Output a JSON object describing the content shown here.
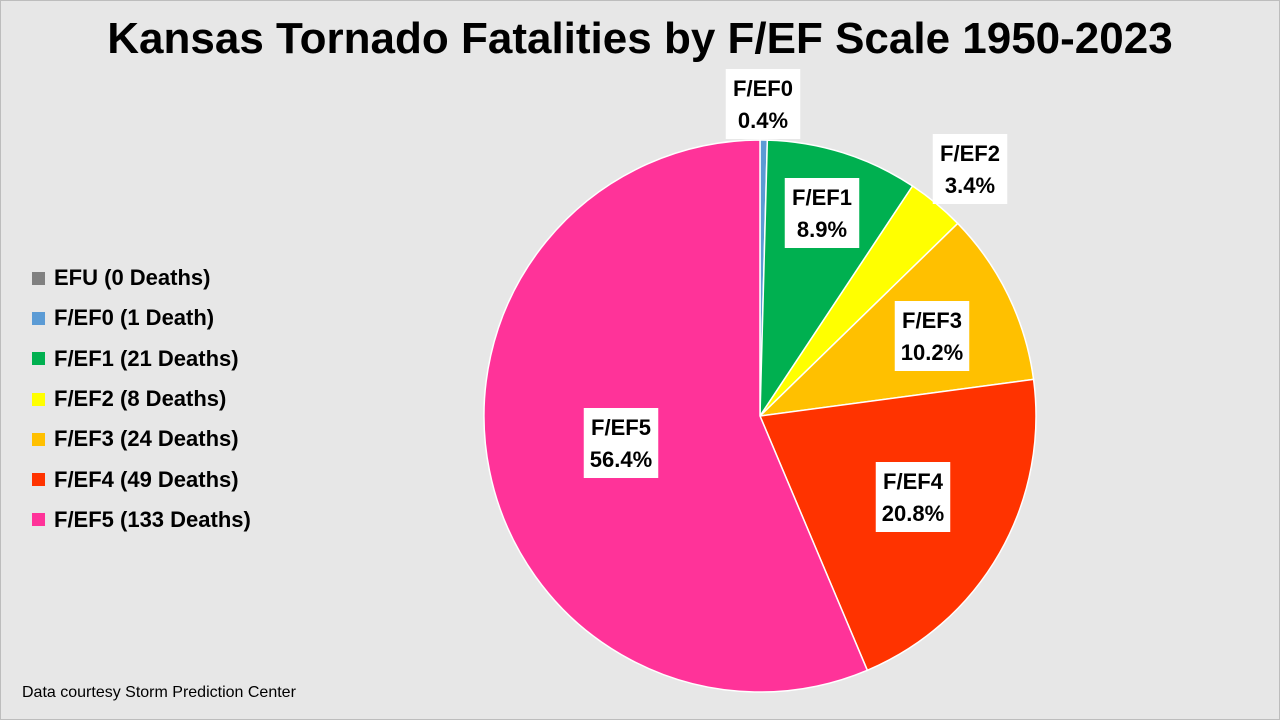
{
  "chart_data": {
    "type": "pie",
    "title": "Kansas Tornado Fatalities by F/EF Scale 1950-2023",
    "source_note": "Data courtesy Storm Prediction Center",
    "legend_placement": "left",
    "slices": [
      {
        "label": "EFU",
        "legend": "EFU (0 Deaths)",
        "value": 0,
        "percent_label": "",
        "color": "#808080"
      },
      {
        "label": "F/EF0",
        "legend": "F/EF0 (1 Death)",
        "value": 1,
        "percent_label": "0.4%",
        "color": "#5b9bd5"
      },
      {
        "label": "F/EF1",
        "legend": "F/EF1 (21 Deaths)",
        "value": 21,
        "percent_label": "8.9%",
        "color": "#00b050"
      },
      {
        "label": "F/EF2",
        "legend": "F/EF2 (8 Deaths)",
        "value": 8,
        "percent_label": "3.4%",
        "color": "#ffff00"
      },
      {
        "label": "F/EF3",
        "legend": "F/EF3 (24 Deaths)",
        "value": 24,
        "percent_label": "10.2%",
        "color": "#ffc000"
      },
      {
        "label": "F/EF4",
        "legend": "F/EF4 (49 Deaths)",
        "value": 49,
        "percent_label": "20.8%",
        "color": "#ff3300"
      },
      {
        "label": "F/EF5",
        "legend": "F/EF5 (133 Deaths)",
        "value": 133,
        "percent_label": "56.4%",
        "color": "#ff3399"
      }
    ]
  }
}
